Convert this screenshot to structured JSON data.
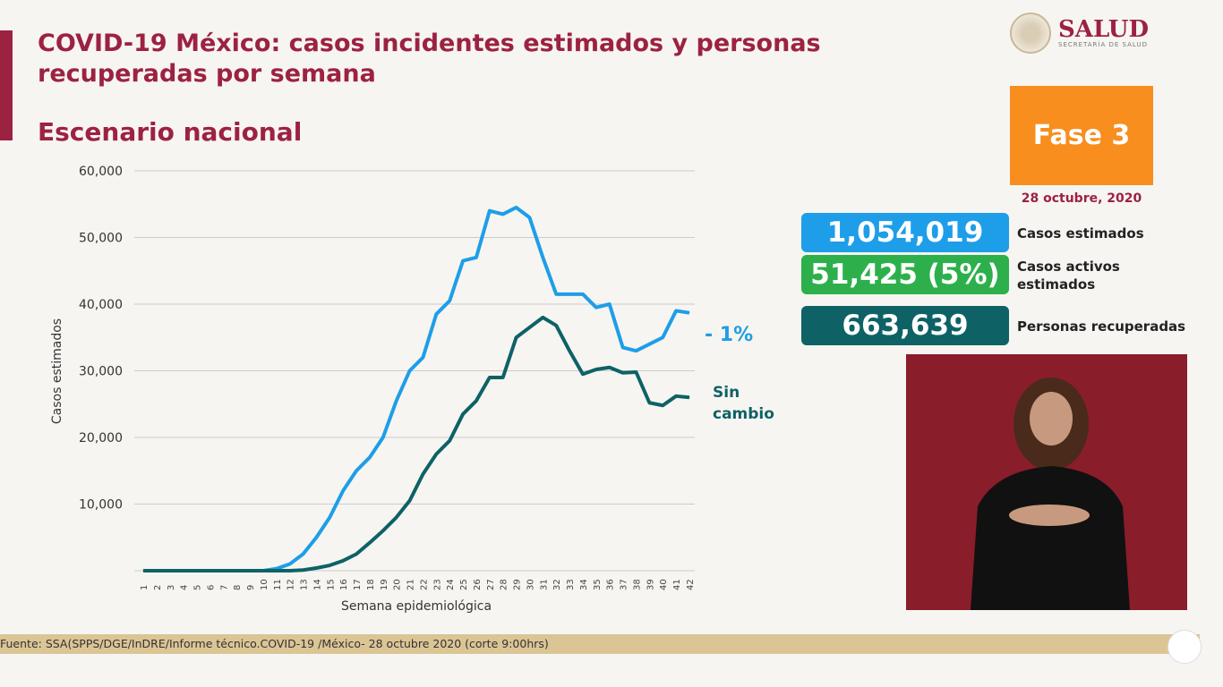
{
  "header": {
    "title": "COVID-19 México: casos incidentes estimados y personas recuperadas por semana",
    "subtitle": "Escenario nacional",
    "logo_text": "SALUD",
    "logo_subtext": "SECRETARÍA DE SALUD"
  },
  "phase": {
    "label": "Fase 3",
    "date": "28 octubre, 2020",
    "color": "#f78e1e"
  },
  "stats": [
    {
      "value": "1,054,019",
      "label": "Casos estimados",
      "color": "#1e9ee8"
    },
    {
      "value": "51,425 (5%)",
      "label": "Casos activos estimados",
      "color": "#2db04b"
    },
    {
      "value": "663,639",
      "label": "Personas recuperadas",
      "color": "#0e6266"
    }
  ],
  "footer": {
    "source": "Fuente: SSA(SPPS/DGE/InDRE/Informe técnico.COVID-19 /México- 28 octubre 2020 (corte 9:00hrs)"
  },
  "chart_data": {
    "type": "line",
    "xlabel": "Semana epidemiológica",
    "ylabel": "Casos estimados",
    "ylim": [
      0,
      60000
    ],
    "yticks": [
      "",
      "10,000",
      "20,000",
      "30,000",
      "40,000",
      "50,000",
      "60,000"
    ],
    "grid": true,
    "x": [
      1,
      2,
      3,
      4,
      5,
      6,
      7,
      8,
      9,
      10,
      11,
      12,
      13,
      14,
      15,
      16,
      17,
      18,
      19,
      20,
      21,
      22,
      23,
      24,
      25,
      26,
      27,
      28,
      29,
      30,
      31,
      32,
      33,
      34,
      35,
      36,
      37,
      38,
      39,
      40,
      41,
      42
    ],
    "series": [
      {
        "color": "#1e9ee8",
        "end_label": "- 1%",
        "values": [
          0,
          0,
          0,
          0,
          0,
          0,
          0,
          0,
          0,
          0,
          300,
          1000,
          2500,
          5000,
          8000,
          12000,
          15000,
          17000,
          20000,
          25500,
          30000,
          32000,
          38500,
          40500,
          46500,
          47000,
          54000,
          53500,
          54500,
          53000,
          47000,
          41500,
          41500,
          41500,
          39500,
          40000,
          33500,
          33000,
          34000,
          35000,
          39000,
          38700
        ]
      },
      {
        "color": "#0e6266",
        "end_label": "Sin cambio",
        "values": [
          0,
          0,
          0,
          0,
          0,
          0,
          0,
          0,
          0,
          0,
          0,
          0,
          100,
          400,
          800,
          1500,
          2500,
          4200,
          6000,
          8000,
          10500,
          14500,
          17500,
          19500,
          23500,
          25500,
          29000,
          29000,
          35000,
          36500,
          38000,
          36800,
          33000,
          29500,
          30200,
          30500,
          29700,
          29800,
          25200,
          24800,
          26200,
          26000
        ]
      }
    ]
  }
}
